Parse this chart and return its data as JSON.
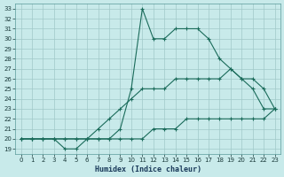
{
  "xlabel": "Humidex (Indice chaleur)",
  "bg_color": "#c8eaea",
  "grid_color": "#a0c8c8",
  "line_color": "#1a6b5a",
  "xlim": [
    -0.5,
    23.5
  ],
  "ylim": [
    18.5,
    33.5
  ],
  "xticks": [
    0,
    1,
    2,
    3,
    4,
    5,
    6,
    7,
    8,
    9,
    10,
    11,
    12,
    13,
    14,
    15,
    16,
    17,
    18,
    19,
    20,
    21,
    22,
    23
  ],
  "yticks": [
    19,
    20,
    21,
    22,
    23,
    24,
    25,
    26,
    27,
    28,
    29,
    30,
    31,
    32,
    33
  ],
  "series_max": {
    "x": [
      0,
      1,
      2,
      3,
      4,
      5,
      6,
      7,
      8,
      9,
      10,
      11,
      12,
      13,
      14,
      15,
      16,
      17,
      18,
      19,
      20,
      21,
      22,
      23
    ],
    "y": [
      20,
      20,
      20,
      20,
      19,
      19,
      20,
      20,
      20,
      21,
      25,
      33,
      30,
      30,
      31,
      31,
      31,
      30,
      28,
      27,
      26,
      25,
      23,
      23
    ]
  },
  "series_p75": {
    "x": [
      0,
      1,
      2,
      3,
      4,
      5,
      6,
      7,
      8,
      9,
      10,
      11,
      12,
      13,
      14,
      15,
      16,
      17,
      18,
      19,
      20,
      21,
      22,
      23
    ],
    "y": [
      20,
      20,
      20,
      20,
      20,
      20,
      20,
      21,
      22,
      23,
      24,
      25,
      25,
      25,
      26,
      26,
      26,
      26,
      26,
      27,
      26,
      26,
      25,
      23
    ]
  },
  "series_min": {
    "x": [
      0,
      1,
      2,
      3,
      4,
      5,
      6,
      7,
      8,
      9,
      10,
      11,
      12,
      13,
      14,
      15,
      16,
      17,
      18,
      19,
      20,
      21,
      22,
      23
    ],
    "y": [
      20,
      20,
      20,
      20,
      20,
      20,
      20,
      20,
      20,
      20,
      20,
      20,
      21,
      21,
      21,
      22,
      22,
      22,
      22,
      22,
      22,
      22,
      22,
      23
    ]
  }
}
